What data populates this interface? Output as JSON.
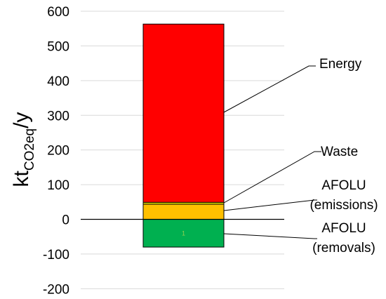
{
  "chart_data": {
    "type": "bar",
    "stacked": true,
    "categories": [
      "1"
    ],
    "ylabel_main": "kt",
    "ylabel_sub": "CO2eq",
    "ylabel_tail": "/y",
    "ylim": [
      -200,
      600
    ],
    "yticks": [
      600,
      500,
      400,
      300,
      200,
      100,
      0,
      -100,
      -200
    ],
    "ytick_labels": [
      "600",
      "500",
      "400",
      "300",
      "200",
      "100",
      "0",
      "-100",
      "-200"
    ],
    "grid": true,
    "series": [
      {
        "name": "AFOLU (removals)",
        "label_lines": [
          "AFOLU",
          "(removals)"
        ],
        "value": -80,
        "color": "#00b050"
      },
      {
        "name": "AFOLU (emissions)",
        "label_lines": [
          "AFOLU",
          "(emissions)"
        ],
        "value": 44,
        "color": "#ffc000"
      },
      {
        "name": "Waste",
        "label_lines": [
          "Waste"
        ],
        "value": 5,
        "color": "#ffff00"
      },
      {
        "name": "Energy",
        "label_lines": [
          "Energy"
        ],
        "value": 514,
        "color": "#ff0000"
      }
    ],
    "category_label_color": "#92d050"
  }
}
